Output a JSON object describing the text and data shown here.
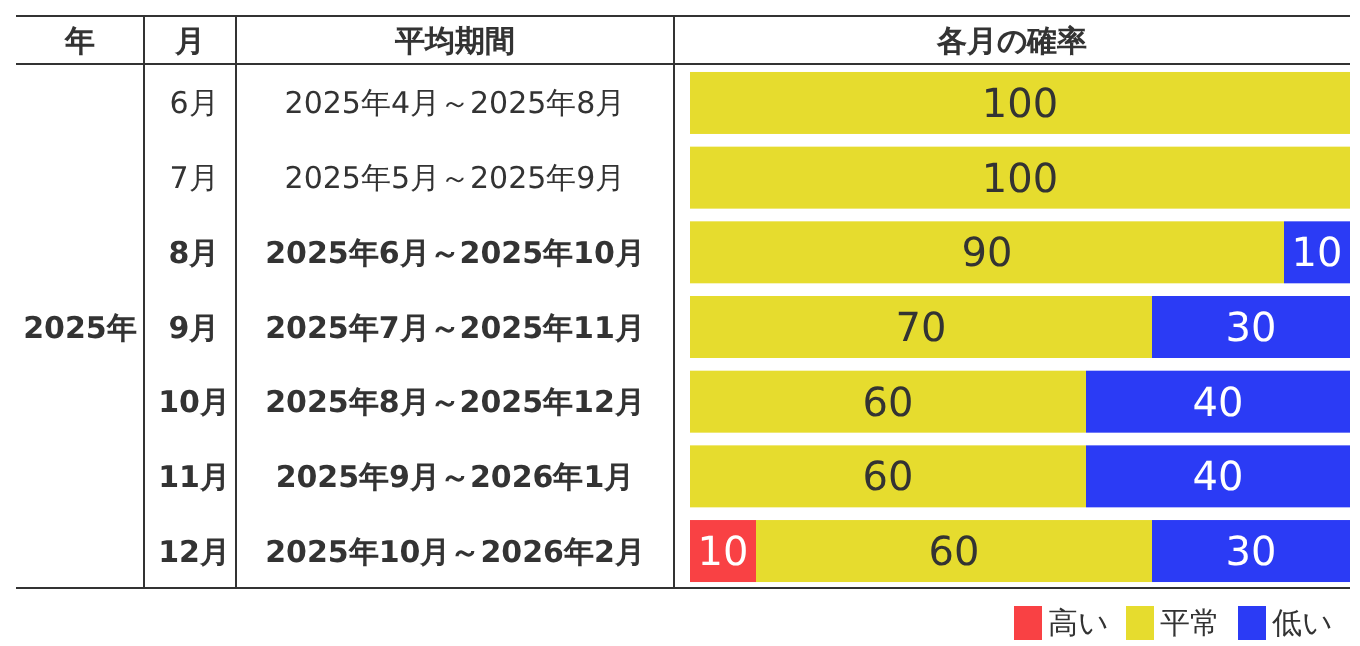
{
  "chart_data": {
    "type": "bar",
    "orientation": "horizontal",
    "stacked": true,
    "categories": [
      "6月",
      "7月",
      "8月",
      "9月",
      "10月",
      "11月",
      "12月"
    ],
    "series": [
      {
        "name": "高い",
        "color": "#f94144",
        "values": [
          null,
          null,
          null,
          null,
          null,
          null,
          10
        ]
      },
      {
        "name": "平常",
        "color": "#e6dc2e",
        "values": [
          100,
          100,
          90,
          70,
          60,
          60,
          60
        ]
      },
      {
        "name": "低い",
        "color": "#2b3bf5",
        "values": [
          null,
          null,
          10,
          30,
          40,
          40,
          30
        ]
      }
    ],
    "xlim": [
      0,
      100
    ],
    "tick_labels": "y",
    "data_labels": true,
    "legend": "bottom right",
    "annotations": [
      "年",
      "月",
      "平均期間",
      "各月の確率",
      "2025年",
      "2025年4月～2025年8月",
      "2025年5月～2025年9月",
      "2025年6月～2025年10月",
      "2025年7月～2025年11月",
      "2025年8月～2025年12月",
      "2025年9月～2026年1月",
      "2025年10月～2026年2月"
    ]
  }
}
